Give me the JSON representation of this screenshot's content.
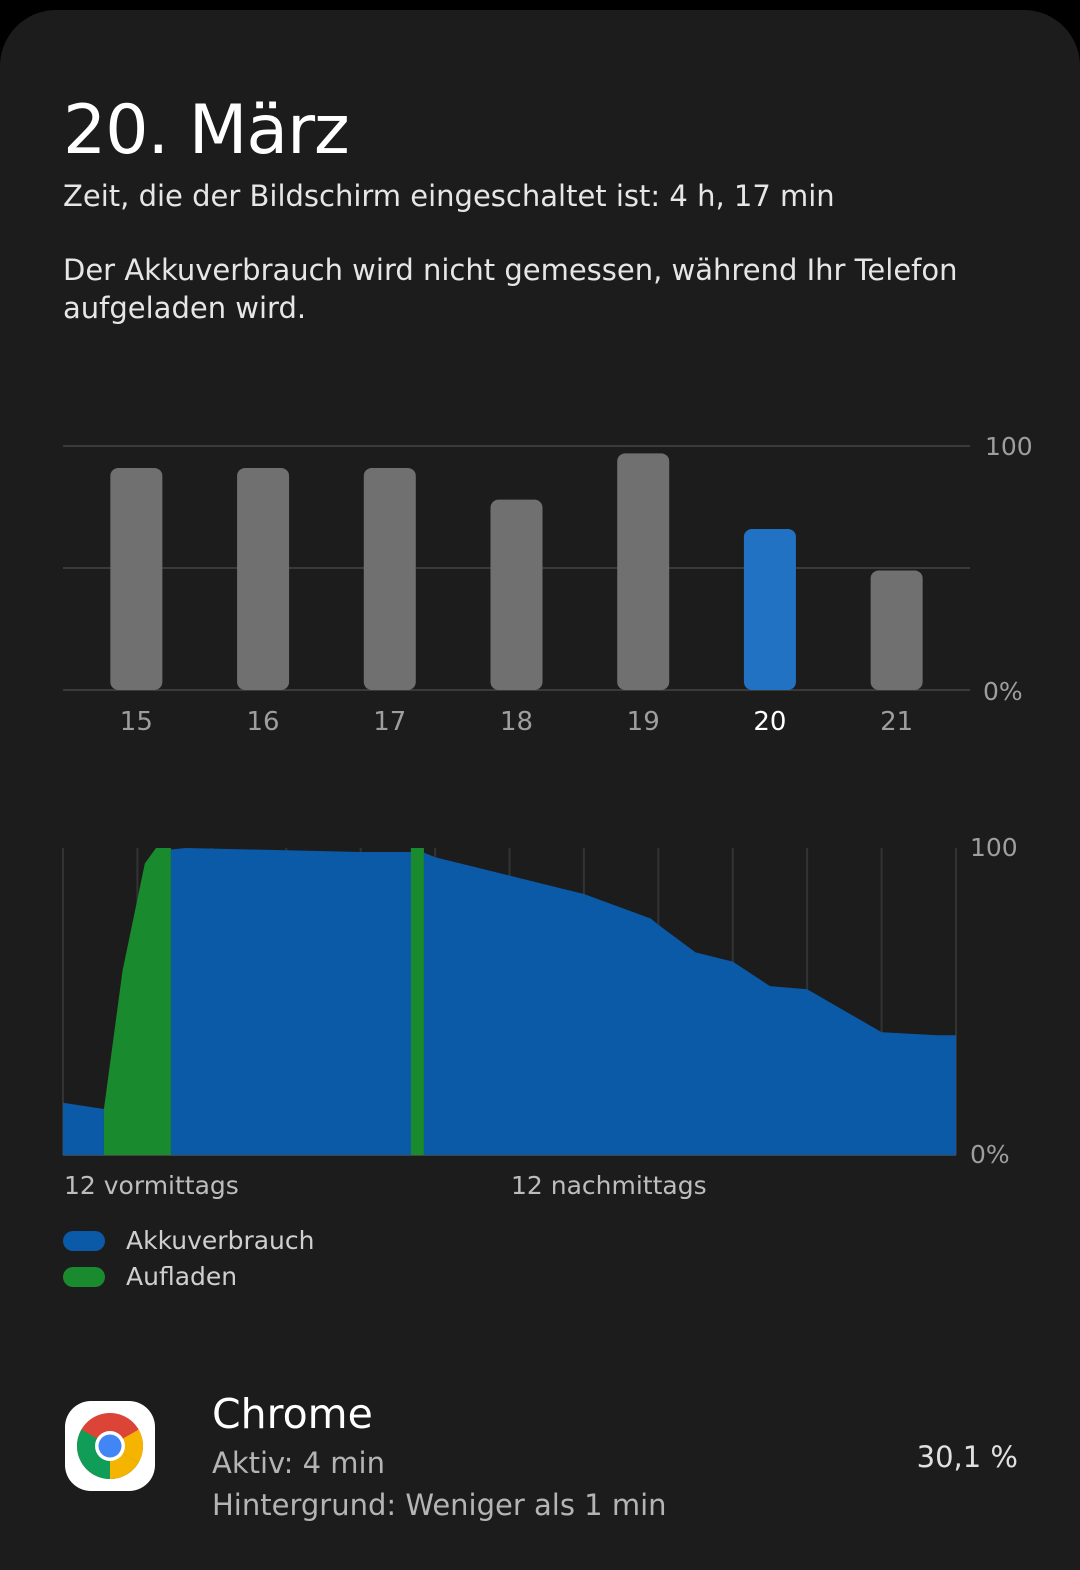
{
  "header": {
    "date_title": "20. März",
    "screen_time": "Zeit, die der Bildschirm eingeschaltet ist: 4 h, 17 min",
    "note": "Der Akkuverbrauch wird nicht gemessen, während Ihr Telefon aufgeladen wird."
  },
  "colors": {
    "selected_bar": "#2272c3",
    "bar": "#707070",
    "usage": "#0b5aa8",
    "charging": "#1a8a2e"
  },
  "chart_data": [
    {
      "type": "bar",
      "categories": [
        "15",
        "16",
        "17",
        "18",
        "19",
        "20",
        "21"
      ],
      "values": [
        91,
        91,
        91,
        78,
        97,
        66,
        49
      ],
      "selected": "20",
      "ylim": [
        0,
        100
      ],
      "ytick_labels": [
        "100",
        "0%"
      ]
    },
    {
      "type": "area",
      "x_label_start": "12 vormittags",
      "x_label_mid": "12 nachmittags",
      "ytick_labels": [
        "100",
        "0%"
      ],
      "ylim": [
        0,
        100
      ],
      "x_unit": "hours since midnight",
      "xlim": [
        0,
        24
      ],
      "series": [
        {
          "name": "Akkuverbrauch",
          "segments": [
            [
              [
                0,
                17
              ],
              [
                1.1,
                15
              ]
            ],
            [
              [
                2.9,
                99.5
              ],
              [
                3.3,
                100
              ],
              [
                8,
                98.7
              ],
              [
                9.4,
                98.7
              ]
            ],
            [
              [
                9.7,
                98.5
              ],
              [
                10,
                97
              ],
              [
                11,
                94
              ],
              [
                12,
                91
              ],
              [
                14,
                85
              ],
              [
                15.8,
                77
              ],
              [
                16,
                75
              ],
              [
                17,
                66
              ],
              [
                18,
                63
              ],
              [
                19,
                55
              ],
              [
                20,
                54
              ],
              [
                21,
                47
              ],
              [
                22,
                40
              ],
              [
                23.5,
                39
              ],
              [
                24,
                39
              ]
            ]
          ]
        },
        {
          "name": "Aufladen",
          "segments": [
            [
              [
                1.1,
                15
              ],
              [
                1.6,
                60
              ],
              [
                2.2,
                95
              ],
              [
                2.5,
                100
              ],
              [
                2.9,
                100
              ]
            ],
            [
              [
                9.35,
                100
              ],
              [
                9.7,
                100
              ]
            ]
          ]
        }
      ]
    }
  ],
  "legend": [
    {
      "label": "Akkuverbrauch"
    },
    {
      "label": "Aufladen"
    }
  ],
  "app": {
    "name": "Chrome",
    "active": "Aktiv: 4 min",
    "background": "Hintergrund: Weniger als 1 min",
    "percent": "30,1 %",
    "icon": "chrome-icon"
  }
}
